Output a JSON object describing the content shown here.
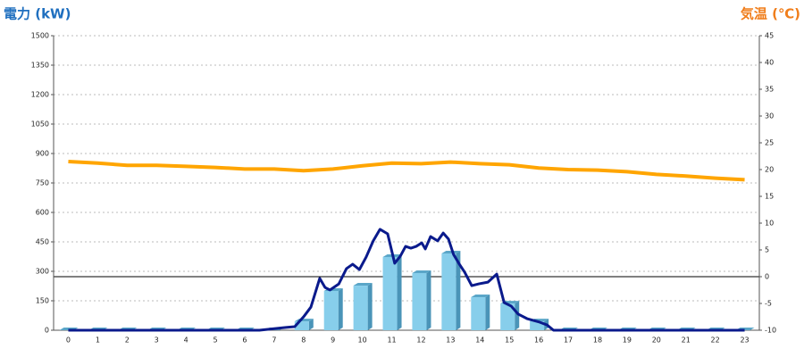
{
  "chart_data": {
    "type": "bar",
    "y_label": "電力 (kW)",
    "y2_label": "気温 (℃)",
    "categories": [
      "0",
      "1",
      "2",
      "3",
      "4",
      "5",
      "6",
      "7",
      "8",
      "9",
      "10",
      "11",
      "12",
      "13",
      "14",
      "15",
      "16",
      "17",
      "18",
      "19",
      "20",
      "21",
      "22",
      "23"
    ],
    "xlim": [
      -0.5,
      23.5
    ],
    "ylim": [
      0,
      1500
    ],
    "yticks": [
      0,
      150,
      300,
      450,
      600,
      750,
      900,
      1050,
      1200,
      1350,
      1500
    ],
    "y2lim": [
      -10,
      45
    ],
    "y2ticks": [
      -10,
      -5,
      0,
      5,
      10,
      15,
      20,
      25,
      30,
      35,
      40,
      45
    ],
    "grid": true,
    "series": [
      {
        "type": "bar",
        "color": "#87ceeb",
        "values": [
          0,
          0,
          0,
          0,
          0,
          0,
          0,
          0,
          45,
          200,
          227,
          373,
          291,
          391,
          168,
          136,
          45,
          0,
          0,
          0,
          0,
          0,
          0,
          0
        ]
      },
      {
        "type": "line",
        "color": "#0a1a8c",
        "x": [
          0,
          6.5,
          7.4,
          7.7,
          8,
          8.25,
          8.55,
          8.73,
          8.9,
          9.2,
          9.46,
          9.67,
          9.9,
          10.13,
          10.37,
          10.6,
          10.86,
          11.1,
          11.29,
          11.47,
          11.65,
          11.83,
          12.02,
          12.14,
          12.32,
          12.56,
          12.75,
          12.93,
          13.1,
          13.3,
          13.48,
          13.72,
          13.96,
          14.27,
          14.57,
          14.82,
          15.06,
          15.3,
          15.6,
          16.03,
          16.28,
          16.5,
          23
        ],
        "values": [
          0,
          0,
          14,
          18,
          68,
          118,
          264,
          218,
          205,
          236,
          314,
          336,
          309,
          373,
          455,
          514,
          491,
          341,
          377,
          427,
          418,
          427,
          445,
          414,
          477,
          455,
          495,
          464,
          386,
          336,
          295,
          227,
          236,
          245,
          286,
          141,
          123,
          82,
          59,
          41,
          27,
          0,
          0
        ]
      },
      {
        "type": "line",
        "axis": "y2",
        "color": "#ffa500",
        "values": [
          21.5,
          21.2,
          20.8,
          20.8,
          20.6,
          20.4,
          20.1,
          20.1,
          19.8,
          20.1,
          20.7,
          21.2,
          21.1,
          21.4,
          21.1,
          20.9,
          20.3,
          20.0,
          19.9,
          19.6,
          19.1,
          18.8,
          18.4,
          18.1
        ]
      }
    ]
  }
}
